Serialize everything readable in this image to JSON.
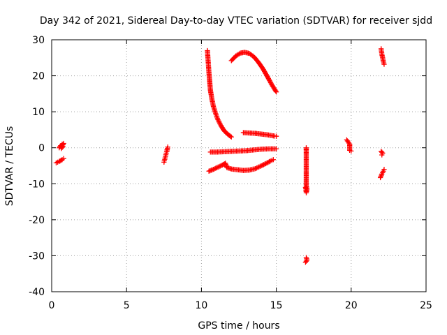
{
  "chart_data": {
    "type": "scatter",
    "title": "Day 342 of 2021, Sidereal Day-to-day VTEC variation (SDTVAR) for receiver sjdd",
    "xlabel": "GPS time / hours",
    "ylabel": "SDTVAR / TECUs",
    "xlim": [
      0,
      25
    ],
    "ylim": [
      -40,
      30
    ],
    "xticks": [
      "0",
      "5",
      "10",
      "15",
      "20",
      "25"
    ],
    "yticks": [
      "-40",
      "-30",
      "-20",
      "-10",
      "0",
      "10",
      "20",
      "30"
    ],
    "grid": true,
    "marker": "plus",
    "color": "#ff0000",
    "series": [
      {
        "points": [
          [
            0.3,
            -4.2
          ],
          [
            0.5,
            -3.8
          ],
          [
            0.7,
            -3.3
          ],
          [
            0.8,
            -3.0
          ]
        ]
      },
      {
        "points": [
          [
            0.5,
            0.0
          ],
          [
            0.6,
            0.6
          ],
          [
            0.7,
            1.0
          ],
          [
            0.8,
            1.2
          ],
          [
            0.65,
            -0.2
          ],
          [
            0.75,
            0.4
          ]
        ]
      },
      {
        "points": [
          [
            7.5,
            -4.0
          ],
          [
            7.55,
            -3.2
          ],
          [
            7.6,
            -2.4
          ],
          [
            7.65,
            -1.5
          ],
          [
            7.7,
            -0.6
          ],
          [
            7.75,
            0.2
          ],
          [
            7.7,
            -1.0
          ]
        ]
      },
      {
        "points": [
          [
            10.4,
            27.0
          ],
          [
            10.45,
            24.0
          ],
          [
            10.5,
            21.0
          ],
          [
            10.55,
            18.5
          ],
          [
            10.6,
            16.0
          ],
          [
            10.7,
            13.5
          ],
          [
            10.8,
            11.5
          ],
          [
            10.95,
            9.5
          ],
          [
            11.1,
            7.8
          ],
          [
            11.3,
            6.2
          ],
          [
            11.5,
            4.8
          ],
          [
            11.8,
            3.6
          ],
          [
            12.0,
            3.0
          ]
        ]
      },
      {
        "points": [
          [
            12.0,
            24.2
          ],
          [
            12.3,
            25.5
          ],
          [
            12.6,
            26.3
          ],
          [
            12.9,
            26.5
          ],
          [
            13.2,
            26.2
          ],
          [
            13.5,
            25.3
          ],
          [
            13.8,
            23.8
          ],
          [
            14.1,
            22.0
          ],
          [
            14.4,
            19.8
          ],
          [
            14.7,
            17.5
          ],
          [
            15.0,
            15.5
          ]
        ]
      },
      {
        "points": [
          [
            12.8,
            4.2
          ],
          [
            13.2,
            4.1
          ],
          [
            13.6,
            4.0
          ],
          [
            14.0,
            3.8
          ],
          [
            14.4,
            3.6
          ],
          [
            14.8,
            3.3
          ],
          [
            15.0,
            3.2
          ]
        ]
      },
      {
        "points": [
          [
            10.6,
            -1.2
          ],
          [
            11.0,
            -1.2
          ],
          [
            11.5,
            -1.1
          ],
          [
            12.0,
            -1.0
          ],
          [
            12.5,
            -0.9
          ],
          [
            13.0,
            -0.8
          ],
          [
            13.5,
            -0.6
          ],
          [
            14.0,
            -0.4
          ],
          [
            14.5,
            -0.3
          ],
          [
            15.0,
            -0.3
          ]
        ]
      },
      {
        "points": [
          [
            10.5,
            -6.5
          ],
          [
            10.8,
            -6.0
          ],
          [
            11.1,
            -5.4
          ],
          [
            11.4,
            -4.8
          ],
          [
            11.6,
            -4.3
          ],
          [
            11.7,
            -5.5
          ],
          [
            12.0,
            -5.9
          ],
          [
            12.4,
            -6.1
          ],
          [
            12.8,
            -6.3
          ],
          [
            13.2,
            -6.2
          ],
          [
            13.6,
            -5.8
          ],
          [
            14.0,
            -5.0
          ],
          [
            14.3,
            -4.4
          ],
          [
            14.6,
            -3.7
          ],
          [
            14.8,
            -3.3
          ]
        ]
      },
      {
        "points": [
          [
            17.0,
            -0.5
          ],
          [
            17.0,
            0.0
          ],
          [
            17.0,
            -1.0
          ],
          [
            17.0,
            -5.2
          ],
          [
            17.0,
            -10.5
          ],
          [
            17.05,
            -11.5
          ],
          [
            17.0,
            -12.5
          ],
          [
            16.95,
            -11.0
          ],
          [
            17.0,
            -30.5
          ],
          [
            17.05,
            -31.2
          ],
          [
            16.95,
            -31.8
          ]
        ]
      },
      {
        "points": [
          [
            19.7,
            2.2
          ],
          [
            19.8,
            1.6
          ],
          [
            19.9,
            1.0
          ],
          [
            19.9,
            -0.7
          ],
          [
            20.0,
            -0.9
          ]
        ]
      },
      {
        "points": [
          [
            22.0,
            27.5
          ],
          [
            22.05,
            26.0
          ],
          [
            22.1,
            25.0
          ],
          [
            22.15,
            24.0
          ],
          [
            22.2,
            23.2
          ],
          [
            22.0,
            -1.0
          ],
          [
            22.1,
            -1.5
          ],
          [
            22.05,
            -2.0
          ],
          [
            21.95,
            -8.3
          ],
          [
            22.05,
            -7.3
          ],
          [
            22.15,
            -6.5
          ],
          [
            22.2,
            -6.0
          ]
        ]
      }
    ]
  }
}
